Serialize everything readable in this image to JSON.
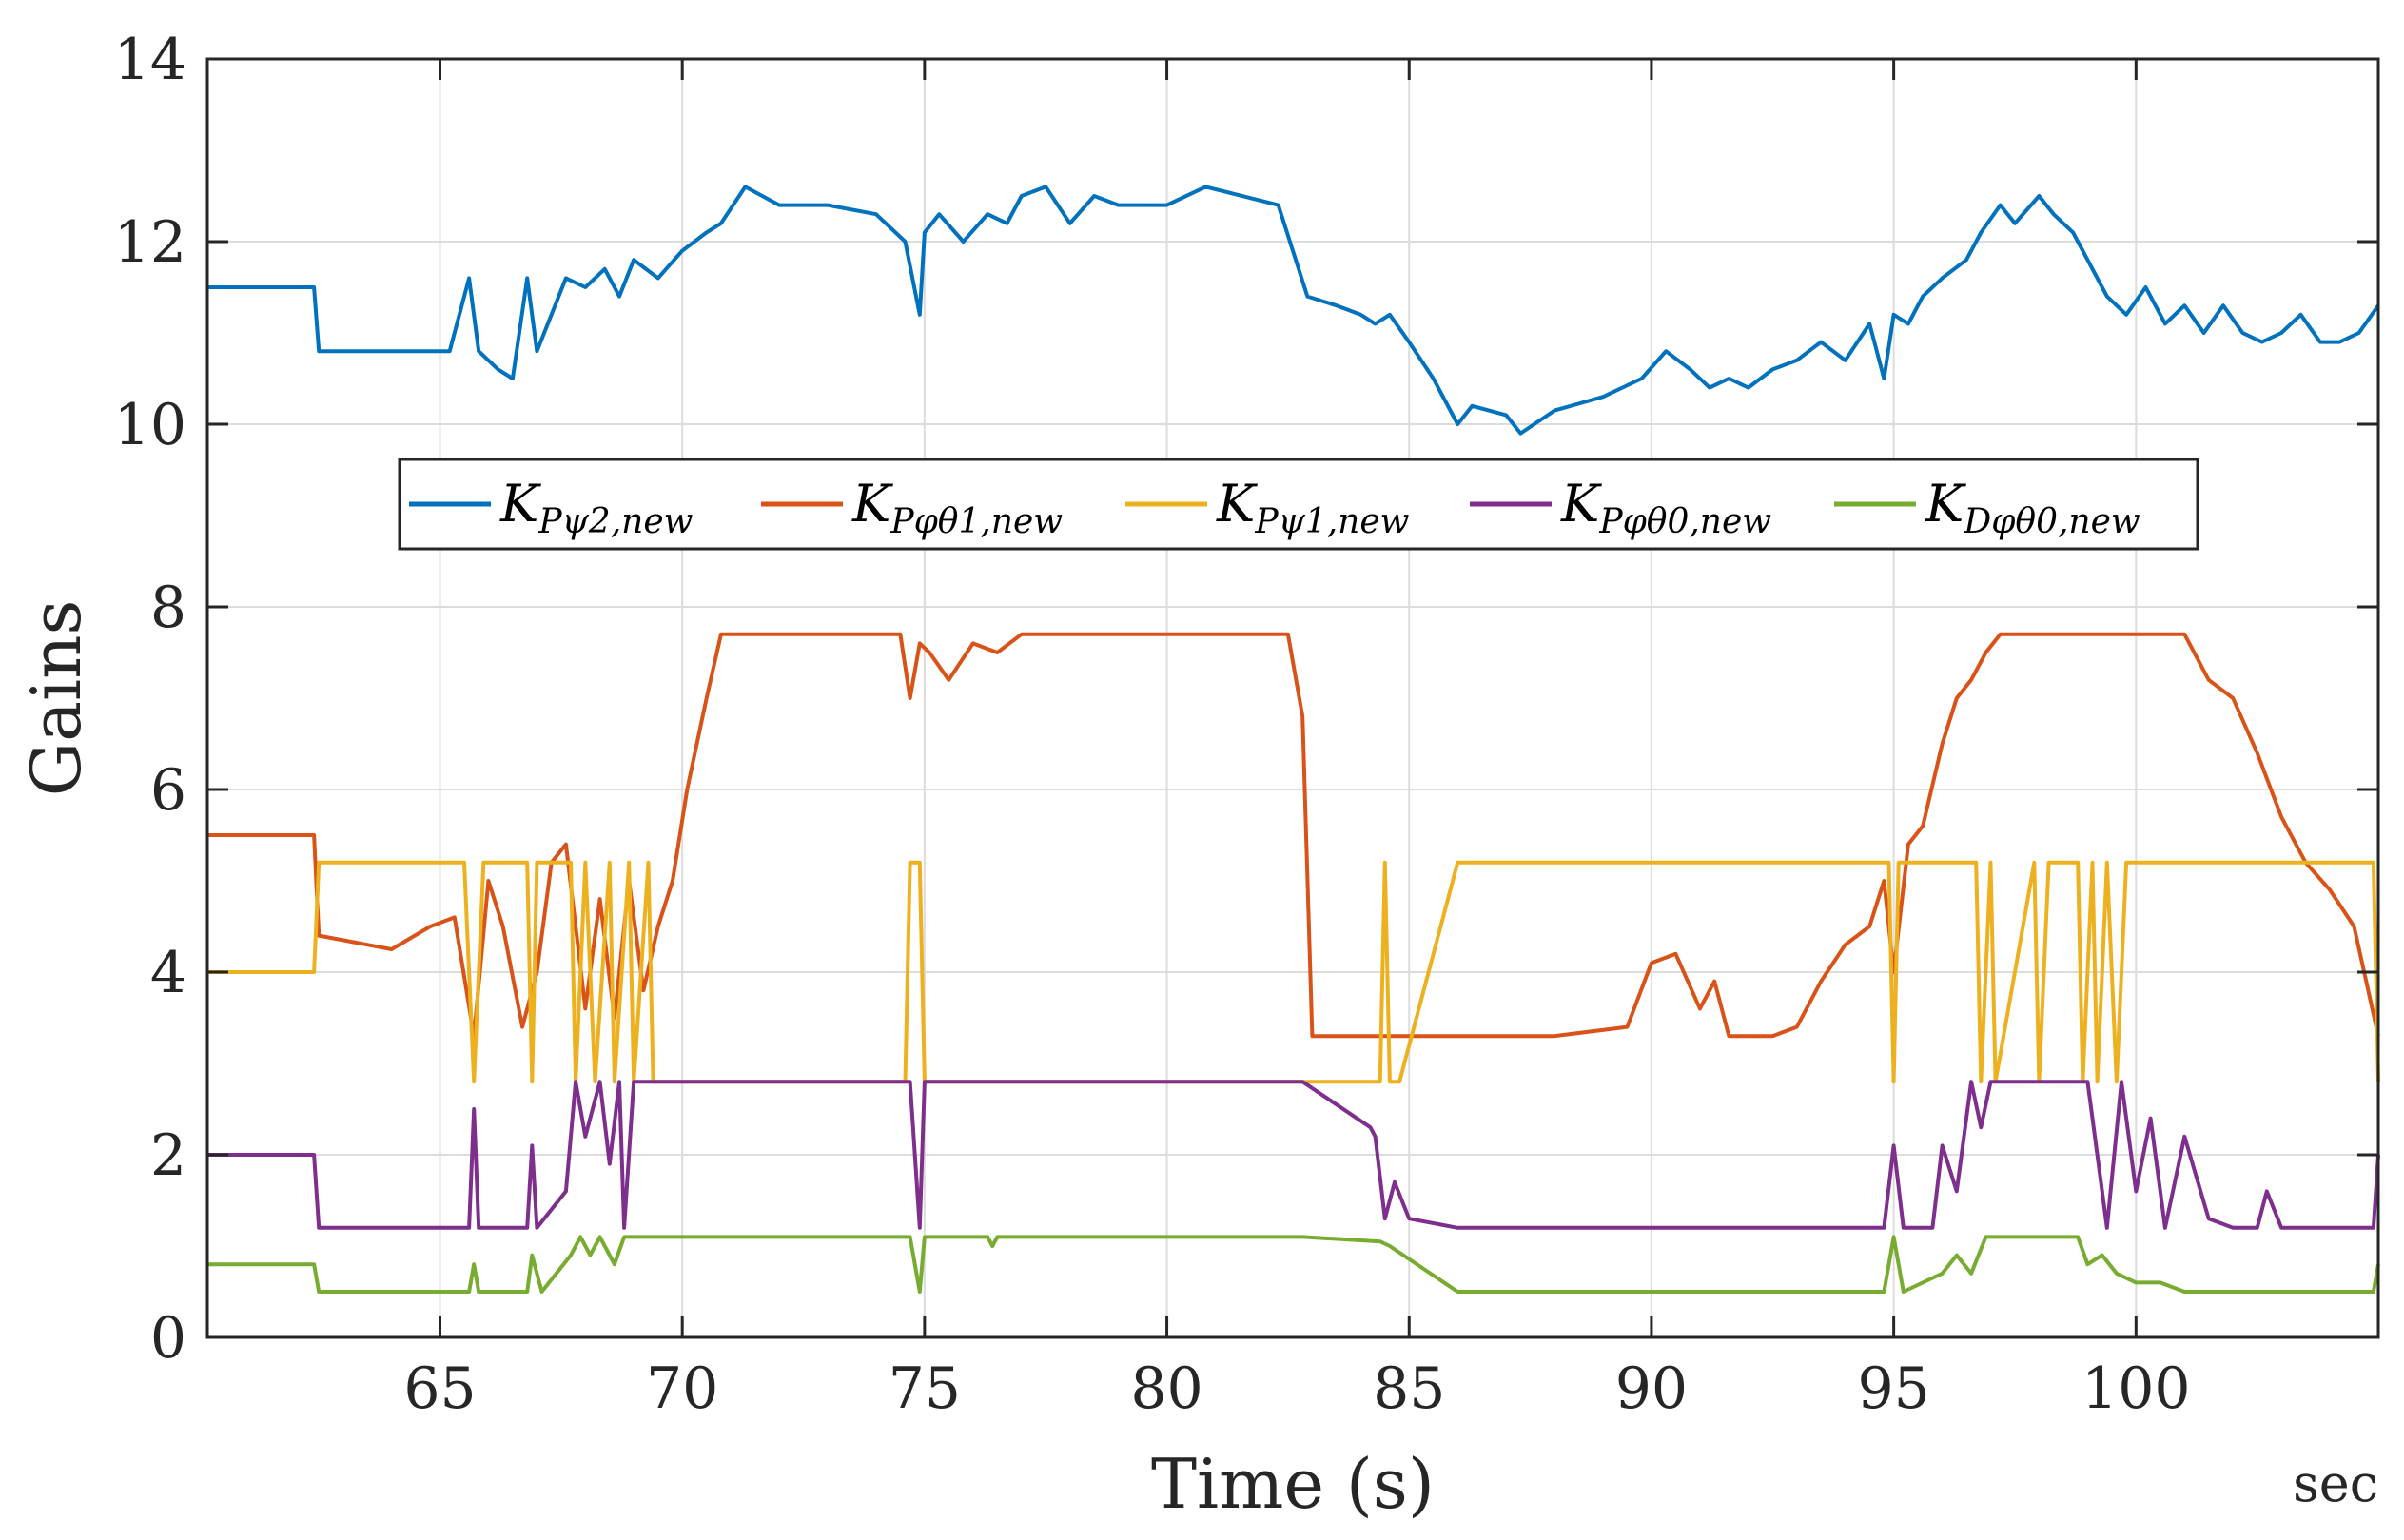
{
  "chart_data": {
    "type": "line",
    "title": "",
    "xlabel": "Time (s)",
    "ylabel": "Gains",
    "x_unit": "sec",
    "xlim": [
      60.2,
      105
    ],
    "ylim": [
      0,
      14
    ],
    "xticks": [
      65,
      70,
      75,
      80,
      85,
      90,
      95,
      100
    ],
    "yticks": [
      0,
      2,
      4,
      6,
      8,
      10,
      12,
      14
    ],
    "grid": true,
    "legend_location": "upper-middle, horizontal",
    "colors": {
      "blue": "#0072BD",
      "orange": "#D95319",
      "yellow": "#EDB120",
      "purple": "#7E2F8E",
      "green": "#77AC30",
      "axis": "#262626",
      "grid": "#dcdcdc"
    },
    "series": [
      {
        "name": "K_{Pψ2,new}",
        "legend_main": "K",
        "legend_sub": "Pψ2,new",
        "color": "#0072BD",
        "x": [
          60.2,
          62.4,
          62.5,
          64.5,
          65.2,
          65.6,
          65.8,
          66.2,
          66.5,
          66.8,
          67.0,
          67.3,
          67.6,
          68.0,
          68.4,
          68.7,
          69.0,
          69.5,
          70.0,
          70.5,
          70.8,
          71.3,
          72.0,
          73.0,
          74.0,
          74.6,
          74.9,
          75.0,
          75.3,
          75.8,
          76.3,
          76.7,
          77.0,
          77.5,
          78.0,
          78.5,
          79.0,
          80.0,
          80.8,
          82.3,
          82.9,
          83.5,
          84.0,
          84.3,
          84.6,
          85.0,
          85.5,
          86.0,
          86.3,
          87.0,
          87.3,
          88.0,
          89.0,
          89.8,
          90.3,
          90.8,
          91.2,
          91.6,
          92.0,
          92.5,
          93.0,
          93.5,
          94.0,
          94.5,
          94.8,
          95.0,
          95.3,
          95.6,
          96.0,
          96.5,
          96.8,
          97.2,
          97.5,
          98.0,
          98.3,
          98.7,
          99.0,
          99.4,
          99.8,
          100.2,
          100.6,
          101.0,
          101.4,
          101.8,
          102.2,
          102.6,
          103.0,
          103.4,
          103.8,
          104.2,
          104.6,
          105.0
        ],
        "y": [
          11.5,
          11.5,
          10.8,
          10.8,
          10.8,
          11.6,
          10.8,
          10.6,
          10.5,
          11.6,
          10.8,
          11.2,
          11.6,
          11.5,
          11.7,
          11.4,
          11.8,
          11.6,
          11.9,
          12.1,
          12.2,
          12.6,
          12.4,
          12.4,
          12.3,
          12.0,
          11.2,
          12.1,
          12.3,
          12.0,
          12.3,
          12.2,
          12.5,
          12.6,
          12.2,
          12.5,
          12.4,
          12.4,
          12.6,
          12.4,
          11.4,
          11.3,
          11.2,
          11.1,
          11.2,
          10.9,
          10.5,
          10.0,
          10.2,
          10.1,
          9.9,
          10.15,
          10.3,
          10.5,
          10.8,
          10.6,
          10.4,
          10.5,
          10.4,
          10.6,
          10.7,
          10.9,
          10.7,
          11.1,
          10.5,
          11.2,
          11.1,
          11.4,
          11.6,
          11.8,
          12.1,
          12.4,
          12.2,
          12.5,
          12.3,
          12.1,
          11.8,
          11.4,
          11.2,
          11.5,
          11.1,
          11.3,
          11.0,
          11.3,
          11.0,
          10.9,
          11.0,
          11.2,
          10.9,
          10.9,
          11.0,
          11.3
        ]
      },
      {
        "name": "K_{Pφθ1,new}",
        "legend_main": "K",
        "legend_sub": "Pφθ1,new",
        "color": "#D95319",
        "x": [
          60.2,
          62.4,
          62.5,
          63.0,
          64.0,
          64.8,
          65.3,
          65.7,
          66.0,
          66.3,
          66.7,
          67.0,
          67.3,
          67.6,
          68.0,
          68.3,
          68.6,
          68.9,
          69.2,
          69.5,
          69.8,
          70.1,
          70.5,
          70.8,
          74.5,
          74.7,
          74.9,
          75.1,
          75.5,
          76.0,
          76.5,
          77.0,
          82.5,
          82.8,
          83.0,
          88.0,
          89.5,
          90.0,
          90.5,
          91.0,
          91.3,
          91.6,
          92.5,
          93.0,
          93.5,
          94.0,
          94.5,
          94.8,
          95.0,
          95.3,
          95.6,
          96.0,
          96.3,
          96.6,
          96.9,
          97.2,
          97.5,
          101.0,
          101.5,
          102.0,
          102.5,
          103.0,
          103.5,
          104.0,
          104.5,
          105.0
        ],
        "y": [
          5.5,
          5.5,
          4.4,
          4.35,
          4.25,
          4.5,
          4.6,
          3.3,
          5.0,
          4.5,
          3.4,
          4.0,
          5.2,
          5.4,
          3.6,
          4.8,
          3.5,
          5.0,
          3.8,
          4.5,
          5.0,
          6.0,
          7.0,
          7.7,
          7.7,
          7.0,
          7.6,
          7.5,
          7.2,
          7.6,
          7.5,
          7.7,
          7.7,
          6.8,
          3.3,
          3.3,
          3.4,
          4.1,
          4.2,
          3.6,
          3.9,
          3.3,
          3.3,
          3.4,
          3.9,
          4.3,
          4.5,
          5.0,
          4.0,
          5.4,
          5.6,
          6.5,
          7.0,
          7.2,
          7.5,
          7.7,
          7.7,
          7.7,
          7.2,
          7.0,
          6.4,
          5.7,
          5.2,
          4.9,
          4.5,
          3.3
        ]
      },
      {
        "name": "K_{Pψ1,new}",
        "legend_main": "K",
        "legend_sub": "Pψ1,new",
        "color": "#EDB120",
        "x": [
          60.2,
          62.4,
          62.5,
          65.5,
          65.7,
          65.9,
          66.8,
          66.9,
          67.0,
          67.7,
          67.8,
          68.0,
          68.2,
          68.5,
          68.6,
          68.9,
          69.0,
          69.3,
          69.4,
          69.6,
          74.6,
          74.7,
          74.9,
          75.0,
          82.8,
          84.4,
          84.5,
          84.6,
          84.8,
          86.0,
          94.9,
          95.0,
          95.1,
          95.3,
          96.7,
          96.8,
          97.0,
          97.1,
          97.9,
          98.0,
          98.2,
          98.8,
          98.9,
          99.1,
          99.2,
          99.4,
          99.6,
          99.8,
          104.9,
          105.0
        ],
        "y": [
          4.0,
          4.0,
          5.2,
          5.2,
          2.8,
          5.2,
          5.2,
          2.8,
          5.2,
          5.2,
          2.8,
          5.2,
          2.8,
          5.2,
          2.8,
          5.2,
          2.8,
          5.2,
          2.8,
          2.8,
          2.8,
          5.2,
          5.2,
          2.8,
          2.8,
          2.8,
          5.2,
          2.8,
          2.8,
          5.2,
          5.2,
          2.8,
          5.2,
          5.2,
          5.2,
          2.8,
          5.2,
          2.8,
          5.2,
          2.8,
          5.2,
          5.2,
          2.8,
          5.2,
          2.8,
          5.2,
          2.8,
          5.2,
          5.2,
          2.8
        ]
      },
      {
        "name": "K_{Pφθ0,new}",
        "legend_main": "K",
        "legend_sub": "Pφθ0,new",
        "color": "#7E2F8E",
        "x": [
          60.2,
          62.4,
          62.5,
          65.6,
          65.7,
          65.8,
          66.8,
          66.9,
          67.0,
          67.6,
          67.8,
          68.0,
          68.3,
          68.5,
          68.7,
          68.8,
          69.0,
          74.7,
          74.9,
          75.0,
          82.8,
          84.2,
          84.3,
          84.5,
          84.7,
          85.0,
          86.0,
          94.8,
          95.0,
          95.2,
          95.8,
          96.0,
          96.3,
          96.6,
          96.8,
          97.0,
          97.2,
          99.0,
          99.4,
          99.7,
          100.0,
          100.3,
          100.6,
          101.0,
          101.5,
          102.0,
          102.5,
          102.7,
          103.0,
          104.9,
          105.0
        ],
        "y": [
          2.0,
          2.0,
          1.2,
          1.2,
          2.5,
          1.2,
          1.2,
          2.1,
          1.2,
          1.6,
          2.8,
          2.2,
          2.8,
          1.9,
          2.8,
          1.2,
          2.8,
          2.8,
          1.2,
          2.8,
          2.8,
          2.3,
          2.2,
          1.3,
          1.7,
          1.3,
          1.2,
          1.2,
          2.1,
          1.2,
          1.2,
          2.1,
          1.6,
          2.8,
          2.3,
          2.8,
          2.8,
          2.8,
          1.2,
          2.8,
          1.6,
          2.4,
          1.2,
          2.2,
          1.3,
          1.2,
          1.2,
          1.6,
          1.2,
          1.2,
          2.0
        ]
      },
      {
        "name": "K_{Dφθ0,new}",
        "legend_main": "K",
        "legend_sub": "Dφθ0,new",
        "color": "#77AC30",
        "x": [
          60.2,
          62.4,
          62.5,
          65.6,
          65.7,
          65.8,
          66.8,
          66.9,
          67.1,
          67.7,
          67.9,
          68.1,
          68.3,
          68.6,
          68.8,
          69.0,
          74.7,
          74.9,
          75.0,
          76.3,
          76.4,
          76.5,
          82.8,
          84.4,
          84.6,
          86.0,
          94.8,
          95.0,
          95.2,
          96.0,
          96.3,
          96.6,
          96.9,
          97.2,
          98.8,
          99.0,
          99.3,
          99.6,
          100.0,
          100.5,
          101.0,
          101.5,
          104.9,
          105.0
        ],
        "y": [
          0.8,
          0.8,
          0.5,
          0.5,
          0.8,
          0.5,
          0.5,
          0.9,
          0.5,
          0.9,
          1.1,
          0.9,
          1.1,
          0.8,
          1.1,
          1.1,
          1.1,
          0.5,
          1.1,
          1.1,
          1.0,
          1.1,
          1.1,
          1.05,
          1.0,
          0.5,
          0.5,
          1.1,
          0.5,
          0.7,
          0.9,
          0.7,
          1.1,
          1.1,
          1.1,
          0.8,
          0.9,
          0.7,
          0.6,
          0.6,
          0.5,
          0.5,
          0.5,
          0.8
        ]
      }
    ]
  }
}
